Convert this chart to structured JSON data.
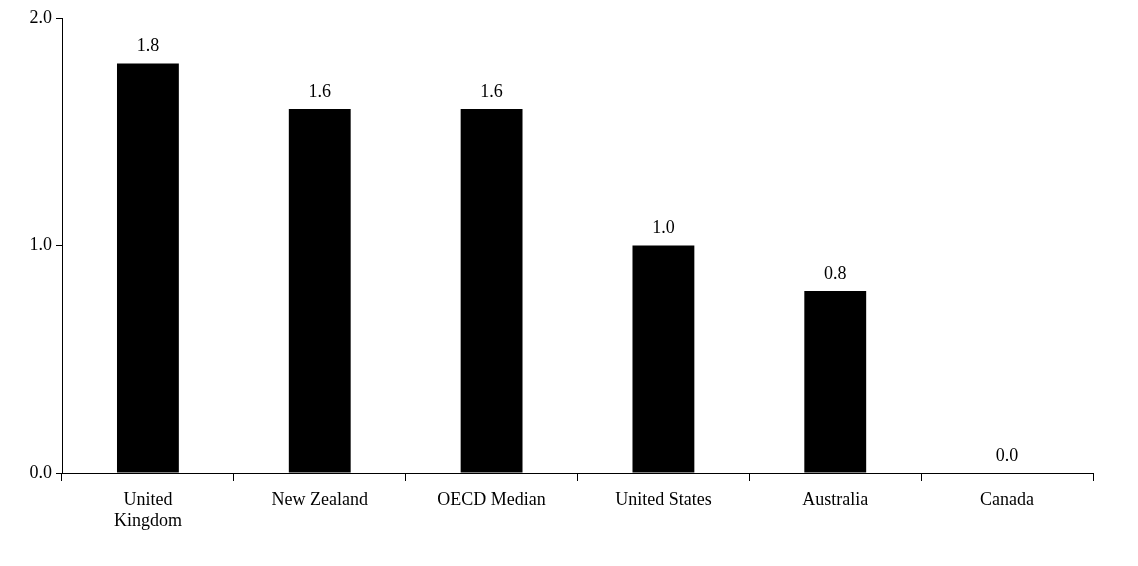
{
  "chart_data": {
    "type": "bar",
    "categories": [
      "United\nKingdom",
      "New Zealand",
      "OECD Median",
      "United States",
      "Australia",
      "Canada"
    ],
    "values": [
      1.8,
      1.6,
      1.6,
      1.0,
      0.8,
      0.0
    ],
    "color": "#000000",
    "value_labels": [
      "1.8",
      "1.6",
      "1.6",
      "1.0",
      "0.8",
      "0.0"
    ],
    "ylim": [
      0,
      2
    ],
    "yticks": [
      {
        "value": 0,
        "label": "0.0"
      },
      {
        "value": 1,
        "label": "1.0"
      },
      {
        "value": 2,
        "label": "2.0"
      }
    ],
    "grid": false,
    "legend": false
  }
}
